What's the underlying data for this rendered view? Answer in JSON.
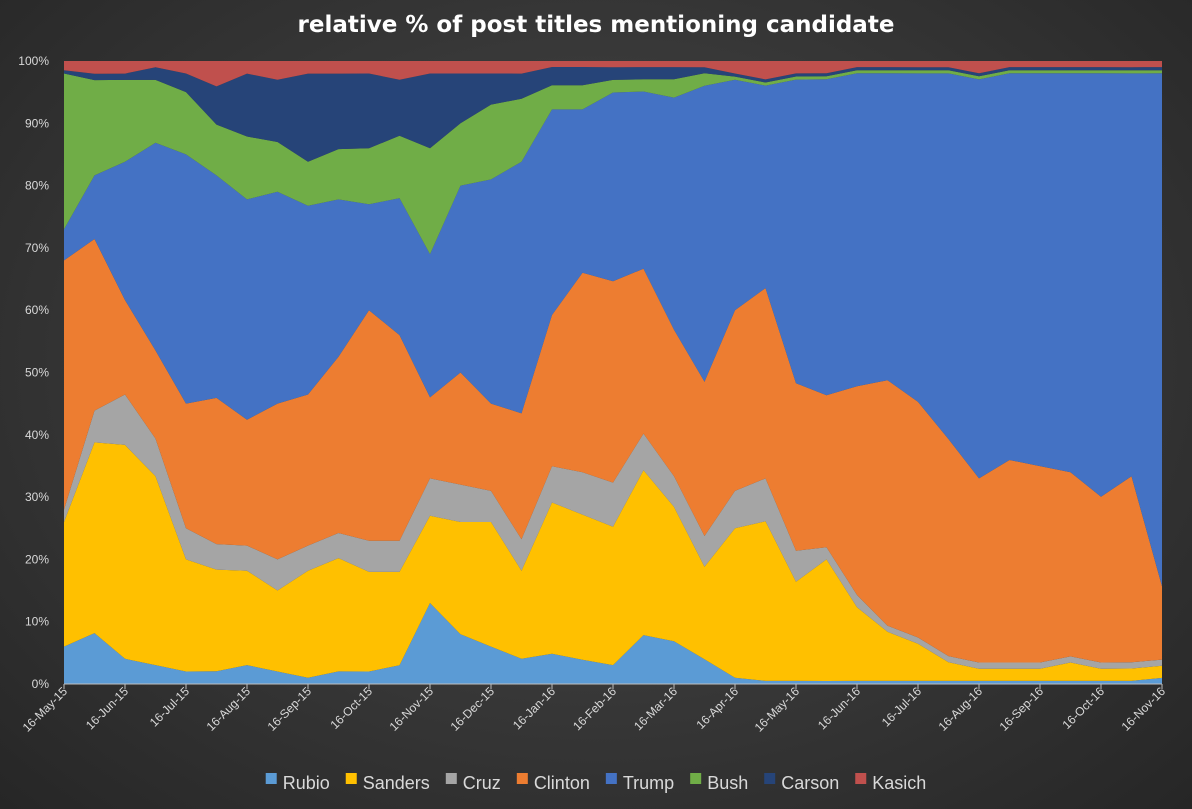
{
  "chart_data": {
    "type": "area",
    "stacked": true,
    "normalized": true,
    "title": "relative % of post titles mentioning candidate",
    "xlabel": "",
    "ylabel": "",
    "ylim": [
      0,
      1
    ],
    "y_ticks": [
      "0%",
      "10%",
      "20%",
      "30%",
      "40%",
      "50%",
      "60%",
      "70%",
      "80%",
      "90%",
      "100%"
    ],
    "x_ticks": [
      "16-May-15",
      "16-Jun-15",
      "16-Jul-15",
      "16-Aug-15",
      "16-Sep-15",
      "16-Oct-15",
      "16-Nov-15",
      "16-Dec-15",
      "16-Jan-16",
      "16-Feb-16",
      "16-Mar-16",
      "16-Apr-16",
      "16-May-16",
      "16-Jun-16",
      "16-Jul-16",
      "16-Aug-16",
      "16-Sep-16",
      "16-Oct-16",
      "16-Nov-16"
    ],
    "grid": false,
    "legend_position": "bottom",
    "series": [
      {
        "name": "Rubio",
        "color": "#5b9bd5",
        "values": [
          0.06,
          0.08,
          0.04,
          0.03,
          0.02,
          0.02,
          0.03,
          0.02,
          0.01,
          0.02,
          0.02,
          0.03,
          0.13,
          0.08,
          0.06,
          0.04,
          0.05,
          0.04,
          0.03,
          0.08,
          0.07,
          0.04,
          0.01,
          0.005,
          0.005,
          0.005,
          0.005,
          0.005,
          0.005,
          0.005,
          0.005,
          0.005,
          0.005,
          0.005,
          0.005,
          0.005,
          0.01
        ]
      },
      {
        "name": "Sanders",
        "color": "#ffc000",
        "values": [
          0.2,
          0.3,
          0.34,
          0.3,
          0.18,
          0.16,
          0.15,
          0.13,
          0.17,
          0.18,
          0.16,
          0.15,
          0.14,
          0.18,
          0.2,
          0.14,
          0.25,
          0.24,
          0.22,
          0.27,
          0.22,
          0.15,
          0.24,
          0.26,
          0.16,
          0.2,
          0.12,
          0.08,
          0.06,
          0.03,
          0.02,
          0.02,
          0.02,
          0.03,
          0.02,
          0.02,
          0.02
        ]
      },
      {
        "name": "Cruz",
        "color": "#a5a5a5",
        "values": [
          0.02,
          0.05,
          0.08,
          0.06,
          0.05,
          0.04,
          0.04,
          0.05,
          0.04,
          0.04,
          0.05,
          0.05,
          0.06,
          0.06,
          0.05,
          0.05,
          0.06,
          0.07,
          0.07,
          0.06,
          0.05,
          0.05,
          0.06,
          0.07,
          0.05,
          0.02,
          0.02,
          0.01,
          0.01,
          0.01,
          0.01,
          0.01,
          0.01,
          0.01,
          0.01,
          0.01,
          0.01
        ]
      },
      {
        "name": "Clinton",
        "color": "#ed7d31",
        "values": [
          0.4,
          0.27,
          0.15,
          0.14,
          0.2,
          0.23,
          0.2,
          0.25,
          0.24,
          0.28,
          0.37,
          0.33,
          0.13,
          0.18,
          0.14,
          0.2,
          0.25,
          0.33,
          0.32,
          0.27,
          0.24,
          0.25,
          0.29,
          0.31,
          0.27,
          0.25,
          0.34,
          0.4,
          0.38,
          0.35,
          0.3,
          0.33,
          0.32,
          0.3,
          0.27,
          0.3,
          0.12
        ]
      },
      {
        "name": "Trump",
        "color": "#4472c4",
        "values": [
          0.05,
          0.1,
          0.22,
          0.33,
          0.4,
          0.35,
          0.35,
          0.34,
          0.3,
          0.25,
          0.17,
          0.22,
          0.23,
          0.3,
          0.36,
          0.4,
          0.34,
          0.27,
          0.3,
          0.29,
          0.38,
          0.48,
          0.37,
          0.33,
          0.49,
          0.52,
          0.51,
          0.5,
          0.53,
          0.59,
          0.65,
          0.63,
          0.64,
          0.65,
          0.69,
          0.65,
          0.84
        ]
      },
      {
        "name": "Bush",
        "color": "#70ad47",
        "values": [
          0.25,
          0.15,
          0.13,
          0.1,
          0.1,
          0.08,
          0.1,
          0.08,
          0.07,
          0.08,
          0.09,
          0.1,
          0.17,
          0.1,
          0.12,
          0.1,
          0.04,
          0.04,
          0.02,
          0.02,
          0.03,
          0.02,
          0.005,
          0.005,
          0.005,
          0.005,
          0.005,
          0.005,
          0.005,
          0.005,
          0.005,
          0.005,
          0.005,
          0.005,
          0.005,
          0.005,
          0.005
        ]
      },
      {
        "name": "Carson",
        "color": "#264478",
        "values": [
          0.005,
          0.01,
          0.01,
          0.02,
          0.03,
          0.06,
          0.1,
          0.1,
          0.14,
          0.12,
          0.12,
          0.09,
          0.12,
          0.08,
          0.05,
          0.04,
          0.03,
          0.03,
          0.02,
          0.02,
          0.02,
          0.01,
          0.005,
          0.005,
          0.005,
          0.005,
          0.005,
          0.005,
          0.005,
          0.005,
          0.005,
          0.005,
          0.005,
          0.005,
          0.005,
          0.005,
          0.005
        ]
      },
      {
        "name": "Kasich",
        "color": "#c0504d",
        "values": [
          0.015,
          0.02,
          0.02,
          0.01,
          0.02,
          0.04,
          0.02,
          0.03,
          0.02,
          0.02,
          0.02,
          0.03,
          0.02,
          0.02,
          0.02,
          0.02,
          0.01,
          0.01,
          0.01,
          0.01,
          0.01,
          0.01,
          0.02,
          0.03,
          0.02,
          0.02,
          0.01,
          0.01,
          0.01,
          0.01,
          0.02,
          0.01,
          0.01,
          0.01,
          0.01,
          0.01,
          0.01
        ]
      }
    ]
  }
}
